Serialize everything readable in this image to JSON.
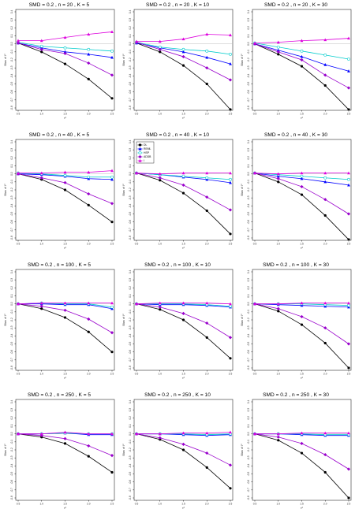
{
  "chart_data": [
    {
      "type": "line",
      "title": "SMD = 0.2 , n = 20 , K = 5",
      "xlabel": "τ²",
      "ylabel": "Bias of I²",
      "x": [
        0.5,
        1,
        1.5,
        2,
        2.5
      ],
      "ylim": [
        -0.8,
        0.4
      ],
      "reference_line": 0,
      "series": [
        {
          "name": "DL",
          "color": "#000000",
          "values": [
            0.01,
            -0.1,
            -0.25,
            -0.44,
            -0.68
          ]
        },
        {
          "name": "REML",
          "color": "#0000ff",
          "values": [
            0.01,
            -0.05,
            -0.1,
            -0.13,
            -0.17
          ]
        },
        {
          "name": "HSP",
          "color": "#00cccc",
          "values": [
            0.02,
            -0.03,
            -0.05,
            -0.07,
            -0.09
          ]
        },
        {
          "name": "ADDB",
          "color": "#9900cc",
          "values": [
            0.01,
            -0.07,
            -0.12,
            -0.24,
            -0.39
          ]
        },
        {
          "name": "I",
          "color": "#dd00dd",
          "values": [
            0.04,
            0.04,
            0.08,
            0.12,
            0.15
          ]
        }
      ]
    },
    {
      "type": "line",
      "title": "SMD = 0.2 , n = 20 , K = 10",
      "xlabel": "τ²",
      "ylabel": "Bias of I²",
      "x": [
        0.5,
        1,
        1.5,
        2,
        2.5
      ],
      "ylim": [
        -0.8,
        0.4
      ],
      "reference_line": 0,
      "series": [
        {
          "name": "DL",
          "color": "#000000",
          "values": [
            0.01,
            -0.1,
            -0.27,
            -0.5,
            -0.82
          ]
        },
        {
          "name": "REML",
          "color": "#0000ff",
          "values": [
            0.01,
            -0.05,
            -0.1,
            -0.17,
            -0.25
          ]
        },
        {
          "name": "HSP",
          "color": "#00cccc",
          "values": [
            0.02,
            -0.04,
            -0.07,
            -0.09,
            -0.13
          ]
        },
        {
          "name": "ADDB",
          "color": "#9900cc",
          "values": [
            0.02,
            -0.07,
            -0.16,
            -0.3,
            -0.45
          ]
        },
        {
          "name": "I",
          "color": "#dd00dd",
          "values": [
            0.03,
            0.03,
            0.06,
            0.12,
            0.11
          ]
        }
      ]
    },
    {
      "type": "line",
      "title": "SMD = 0.2 , n = 20 , K = 30",
      "xlabel": "τ²",
      "ylabel": "Bias of I²",
      "x": [
        0.5,
        1,
        1.5,
        2,
        2.5
      ],
      "ylim": [
        -0.8,
        0.4
      ],
      "reference_line": 0,
      "series": [
        {
          "name": "DL",
          "color": "#000000",
          "values": [
            0.0,
            -0.13,
            -0.28,
            -0.52,
            -0.82
          ]
        },
        {
          "name": "REML",
          "color": "#0000ff",
          "values": [
            0.0,
            -0.08,
            -0.16,
            -0.26,
            -0.34
          ]
        },
        {
          "name": "HSP",
          "color": "#00cccc",
          "values": [
            0.01,
            -0.04,
            -0.09,
            -0.14,
            -0.19
          ]
        },
        {
          "name": "ADDB",
          "color": "#9900cc",
          "values": [
            0.0,
            -0.1,
            -0.2,
            -0.39,
            -0.55
          ]
        },
        {
          "name": "I",
          "color": "#dd00dd",
          "values": [
            0.01,
            0.02,
            0.04,
            0.05,
            0.07
          ]
        }
      ]
    },
    {
      "type": "line",
      "title": "SMD = 0.2 , n = 40 , K = 5",
      "xlabel": "τ²",
      "ylabel": "Bias of I²",
      "x": [
        0.5,
        1,
        1.5,
        2,
        2.5
      ],
      "ylim": [
        -0.8,
        0.4
      ],
      "reference_line": 0,
      "series": [
        {
          "name": "DL",
          "color": "#000000",
          "values": [
            0.0,
            -0.07,
            -0.2,
            -0.39,
            -0.6
          ]
        },
        {
          "name": "REML",
          "color": "#0000ff",
          "values": [
            0.0,
            -0.01,
            -0.03,
            -0.06,
            -0.07
          ]
        },
        {
          "name": "HSP",
          "color": "#00cccc",
          "values": [
            0.01,
            -0.0,
            -0.02,
            -0.04,
            -0.04
          ]
        },
        {
          "name": "ADDB",
          "color": "#9900cc",
          "values": [
            0.0,
            -0.05,
            -0.11,
            -0.25,
            -0.37
          ]
        },
        {
          "name": "I",
          "color": "#dd00dd",
          "values": [
            0.01,
            0.01,
            0.02,
            0.02,
            0.04
          ]
        }
      ]
    },
    {
      "type": "line",
      "title": "SMD = 0.2 , n = 40 , K = 10",
      "xlabel": "τ²",
      "ylabel": "Bias of I²",
      "x": [
        0.5,
        1,
        1.5,
        2,
        2.5
      ],
      "ylim": [
        -0.8,
        0.4
      ],
      "reference_line": 0,
      "legend": [
        "DL",
        "REML",
        "HSP",
        "ADDB",
        "I"
      ],
      "series": [
        {
          "name": "DL",
          "color": "#000000",
          "values": [
            0.01,
            -0.08,
            -0.24,
            -0.46,
            -0.75
          ]
        },
        {
          "name": "REML",
          "color": "#0000ff",
          "values": [
            0.01,
            -0.01,
            -0.04,
            -0.07,
            -0.11
          ]
        },
        {
          "name": "HSP",
          "color": "#00cccc",
          "values": [
            0.01,
            -0.01,
            -0.03,
            -0.05,
            -0.07
          ]
        },
        {
          "name": "ADDB",
          "color": "#9900cc",
          "values": [
            0.01,
            -0.05,
            -0.14,
            -0.29,
            -0.45
          ]
        },
        {
          "name": "I",
          "color": "#dd00dd",
          "values": [
            0.01,
            0.0,
            0.01,
            0.01,
            0.01
          ]
        }
      ]
    },
    {
      "type": "line",
      "title": "SMD = 0.2 , n = 40 , K = 30",
      "xlabel": "τ²",
      "ylabel": "Bias of I²",
      "x": [
        0.5,
        1,
        1.5,
        2,
        2.5
      ],
      "ylim": [
        -0.8,
        0.4
      ],
      "reference_line": 0,
      "series": [
        {
          "name": "DL",
          "color": "#000000",
          "values": [
            0.01,
            -0.1,
            -0.26,
            -0.52,
            -0.82
          ]
        },
        {
          "name": "REML",
          "color": "#0000ff",
          "values": [
            0.01,
            -0.03,
            -0.06,
            -0.1,
            -0.14
          ]
        },
        {
          "name": "HSP",
          "color": "#00cccc",
          "values": [
            0.01,
            -0.01,
            -0.03,
            -0.05,
            -0.07
          ]
        },
        {
          "name": "ADDB",
          "color": "#9900cc",
          "values": [
            0.01,
            -0.06,
            -0.16,
            -0.32,
            -0.5
          ]
        },
        {
          "name": "I",
          "color": "#dd00dd",
          "values": [
            0.01,
            0.0,
            0.01,
            0.01,
            0.01
          ]
        }
      ]
    },
    {
      "type": "line",
      "title": "SMD = 0.2 , n = 100 , K = 5",
      "xlabel": "τ²",
      "ylabel": "Bias of I²",
      "x": [
        0.5,
        1,
        1.5,
        2,
        2.5
      ],
      "ylim": [
        -0.8,
        0.4
      ],
      "reference_line": 0,
      "series": [
        {
          "name": "DL",
          "color": "#000000",
          "values": [
            0.0,
            -0.06,
            -0.17,
            -0.35,
            -0.6
          ]
        },
        {
          "name": "REML",
          "color": "#0000ff",
          "values": [
            0.0,
            -0.0,
            -0.01,
            -0.01,
            -0.06
          ]
        },
        {
          "name": "HSP",
          "color": "#00cccc",
          "values": [
            0.0,
            0.01,
            0.0,
            0.0,
            -0.04
          ]
        },
        {
          "name": "ADDB",
          "color": "#9900cc",
          "values": [
            0.0,
            -0.03,
            -0.08,
            -0.19,
            -0.36
          ]
        },
        {
          "name": "I",
          "color": "#dd00dd",
          "values": [
            0.0,
            0.01,
            0.01,
            0.01,
            0.01
          ]
        }
      ]
    },
    {
      "type": "line",
      "title": "SMD = 0.2 , n = 100 , K = 10",
      "xlabel": "τ²",
      "ylabel": "Bias of I²",
      "x": [
        0.5,
        1,
        1.5,
        2,
        2.5
      ],
      "ylim": [
        -0.8,
        0.4
      ],
      "reference_line": 0,
      "series": [
        {
          "name": "DL",
          "color": "#000000",
          "values": [
            0.0,
            -0.07,
            -0.2,
            -0.42,
            -0.68
          ]
        },
        {
          "name": "REML",
          "color": "#0000ff",
          "values": [
            0.0,
            -0.01,
            -0.01,
            -0.02,
            -0.04
          ]
        },
        {
          "name": "HSP",
          "color": "#00cccc",
          "values": [
            0.0,
            0.0,
            -0.0,
            -0.01,
            -0.03
          ]
        },
        {
          "name": "ADDB",
          "color": "#9900cc",
          "values": [
            0.0,
            -0.04,
            -0.12,
            -0.24,
            -0.42
          ]
        },
        {
          "name": "I",
          "color": "#dd00dd",
          "values": [
            0.0,
            0.01,
            0.01,
            0.01,
            0.0
          ]
        }
      ]
    },
    {
      "type": "line",
      "title": "SMD = 0.2 , n = 100 , K = 30",
      "xlabel": "τ²",
      "ylabel": "Bias of I²",
      "x": [
        0.5,
        1,
        1.5,
        2,
        2.5
      ],
      "ylim": [
        -0.8,
        0.4
      ],
      "reference_line": 0,
      "series": [
        {
          "name": "DL",
          "color": "#000000",
          "values": [
            0.0,
            -0.09,
            -0.26,
            -0.49,
            -0.8
          ]
        },
        {
          "name": "REML",
          "color": "#0000ff",
          "values": [
            0.0,
            -0.01,
            -0.02,
            -0.03,
            -0.04
          ]
        },
        {
          "name": "HSP",
          "color": "#00cccc",
          "values": [
            0.0,
            0.0,
            -0.0,
            -0.01,
            -0.02
          ]
        },
        {
          "name": "ADDB",
          "color": "#9900cc",
          "values": [
            0.0,
            -0.06,
            -0.16,
            -0.3,
            -0.5
          ]
        },
        {
          "name": "I",
          "color": "#dd00dd",
          "values": [
            0.0,
            0.0,
            0.01,
            0.01,
            0.01
          ]
        }
      ]
    },
    {
      "type": "line",
      "title": "SMD = 0.2 , n = 250 , K = 5",
      "xlabel": "τ²",
      "ylabel": "Bias of I²",
      "x": [
        0.5,
        1,
        1.5,
        2,
        2.5
      ],
      "ylim": [
        -0.8,
        0.4
      ],
      "reference_line": 0,
      "series": [
        {
          "name": "DL",
          "color": "#000000",
          "values": [
            0.0,
            -0.04,
            -0.12,
            -0.28,
            -0.48
          ]
        },
        {
          "name": "REML",
          "color": "#0000ff",
          "values": [
            0.0,
            -0.0,
            0.01,
            -0.01,
            -0.01
          ]
        },
        {
          "name": "HSP",
          "color": "#00cccc",
          "values": [
            0.0,
            0.0,
            0.01,
            0.0,
            0.0
          ]
        },
        {
          "name": "ADDB",
          "color": "#9900cc",
          "values": [
            0.0,
            -0.02,
            -0.06,
            -0.15,
            -0.27
          ]
        },
        {
          "name": "I",
          "color": "#dd00dd",
          "values": [
            0.0,
            0.0,
            0.02,
            0.0,
            0.0
          ]
        }
      ]
    },
    {
      "type": "line",
      "title": "SMD = 0.2 , n = 250 , K = 10",
      "xlabel": "τ²",
      "ylabel": "Bias of I²",
      "x": [
        0.5,
        1,
        1.5,
        2,
        2.5
      ],
      "ylim": [
        -0.8,
        0.4
      ],
      "reference_line": 0,
      "series": [
        {
          "name": "DL",
          "color": "#000000",
          "values": [
            0.0,
            -0.07,
            -0.2,
            -0.42,
            -0.68
          ]
        },
        {
          "name": "REML",
          "color": "#0000ff",
          "values": [
            0.0,
            -0.0,
            -0.01,
            -0.02,
            -0.01
          ]
        },
        {
          "name": "HSP",
          "color": "#00cccc",
          "values": [
            0.0,
            0.0,
            -0.0,
            -0.01,
            -0.0
          ]
        },
        {
          "name": "ADDB",
          "color": "#9900cc",
          "values": [
            0.0,
            -0.05,
            -0.13,
            -0.24,
            -0.39
          ]
        },
        {
          "name": "I",
          "color": "#dd00dd",
          "values": [
            0.0,
            0.0,
            0.01,
            0.01,
            0.02
          ]
        }
      ]
    },
    {
      "type": "line",
      "title": "SMD = 0.2 , n = 250 , K = 30",
      "xlabel": "τ²",
      "ylabel": "Bias of I²",
      "x": [
        0.5,
        1,
        1.5,
        2,
        2.5
      ],
      "ylim": [
        -0.8,
        0.4
      ],
      "reference_line": 0,
      "series": [
        {
          "name": "DL",
          "color": "#000000",
          "values": [
            0.0,
            -0.08,
            -0.24,
            -0.48,
            -0.8
          ]
        },
        {
          "name": "REML",
          "color": "#0000ff",
          "values": [
            0.0,
            -0.0,
            -0.01,
            -0.02,
            -0.02
          ]
        },
        {
          "name": "HSP",
          "color": "#00cccc",
          "values": [
            0.0,
            0.0,
            -0.0,
            -0.01,
            -0.01
          ]
        },
        {
          "name": "ADDB",
          "color": "#9900cc",
          "values": [
            0.0,
            -0.04,
            -0.12,
            -0.26,
            -0.44
          ]
        },
        {
          "name": "I",
          "color": "#dd00dd",
          "values": [
            0.0,
            0.0,
            0.01,
            0.01,
            0.01
          ]
        }
      ]
    }
  ],
  "markers": {
    "DL": "circle",
    "REML": "triangle",
    "HSP": "circle-open",
    "ADDB": "diamond",
    "I": "triangle"
  }
}
